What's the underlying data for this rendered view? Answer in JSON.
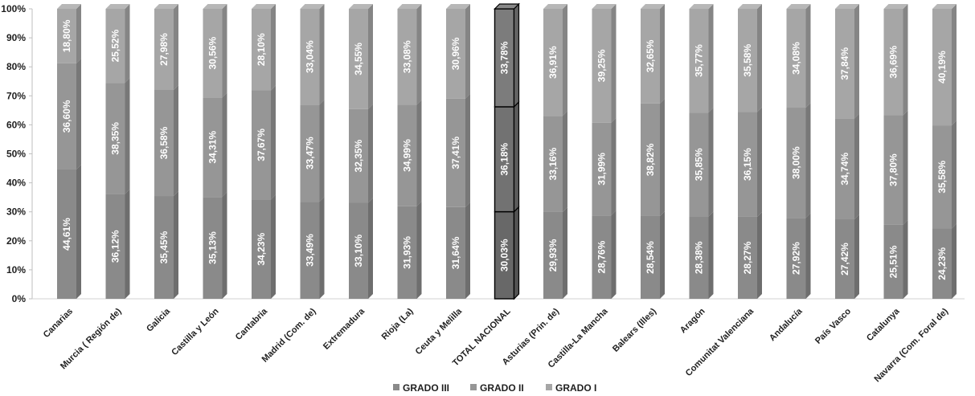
{
  "chart_data": {
    "type": "bar",
    "stacked": true,
    "percent": true,
    "categories": [
      "Canarias",
      "Murcia ( Región de)",
      "Galicia",
      "Castilla y León",
      "Cantabria",
      "Madrid (Com. de)",
      "Extremadura",
      "Rioja (La)",
      "Ceuta y Melilla",
      "TOTAL NACIONAL",
      "Asturias (Prin. de)",
      "Castilla-La Mancha",
      "Balears (Illes)",
      "Aragón",
      "Comunitat Valenciana",
      "Andalucía",
      "País Vasco",
      "Catalunya",
      "Navarra (Com. Foral de)"
    ],
    "series": [
      {
        "name": "GRADO III",
        "color": "#8a8a8a",
        "highlight_color": "#686868",
        "values": [
          44.61,
          36.12,
          35.45,
          35.13,
          34.23,
          33.49,
          33.1,
          31.93,
          31.64,
          30.03,
          29.93,
          28.76,
          28.54,
          28.38,
          28.27,
          27.92,
          27.42,
          25.51,
          24.23
        ],
        "labels": [
          "44,61%",
          "36,12%",
          "35,45%",
          "35,13%",
          "34,23%",
          "33,49%",
          "33,10%",
          "31,93%",
          "31,64%",
          "30,03%",
          "29,93%",
          "28,76%",
          "28,54%",
          "28,38%",
          "28,27%",
          "27,92%",
          "27,42%",
          "25,51%",
          "24,23%"
        ]
      },
      {
        "name": "GRADO II",
        "color": "#969696",
        "highlight_color": "#727272",
        "values": [
          36.6,
          38.35,
          36.58,
          34.31,
          37.67,
          33.47,
          32.35,
          34.99,
          37.41,
          36.18,
          33.16,
          31.99,
          38.82,
          35.85,
          36.15,
          38.0,
          34.74,
          37.8,
          35.58
        ],
        "labels": [
          "36,60%",
          "38,35%",
          "36,58%",
          "34,31%",
          "37,67%",
          "33,47%",
          "32,35%",
          "34,99%",
          "37,41%",
          "36,18%",
          "33,16%",
          "31,99%",
          "38,82%",
          "35,85%",
          "36,15%",
          "38,00%",
          "34,74%",
          "37,80%",
          "35,58%"
        ]
      },
      {
        "name": "GRADO I",
        "color": "#a6a6a6",
        "highlight_color": "#7c7c7c",
        "values": [
          18.8,
          25.52,
          27.98,
          30.56,
          28.1,
          33.04,
          34.55,
          33.08,
          30.96,
          33.78,
          36.91,
          39.25,
          32.65,
          35.77,
          35.58,
          34.08,
          37.84,
          36.69,
          40.19
        ],
        "labels": [
          "18,80%",
          "25,52%",
          "27,98%",
          "30,56%",
          "28,10%",
          "33,04%",
          "34,55%",
          "33,08%",
          "30,96%",
          "33,78%",
          "36,91%",
          "39,25%",
          "32,65%",
          "35,77%",
          "35,58%",
          "34,08%",
          "37,84%",
          "36,69%",
          "40,19%"
        ]
      }
    ],
    "highlight_category": "TOTAL NACIONAL",
    "yticks": [
      "0%",
      "10%",
      "20%",
      "30%",
      "40%",
      "50%",
      "60%",
      "70%",
      "80%",
      "90%",
      "100%"
    ],
    "ylim": [
      0,
      100
    ],
    "grid": false,
    "legend_position": "bottom"
  }
}
